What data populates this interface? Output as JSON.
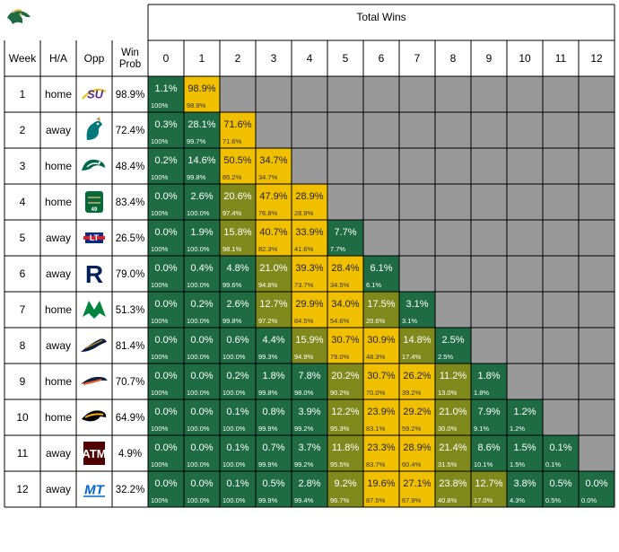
{
  "header": {
    "logo_icon": "dragon-mascot-logo",
    "total_wins_label": "Total Wins",
    "col_week": "Week",
    "col_ha": "H/A",
    "col_opp": "Opp",
    "col_winprob_line1": "Win",
    "col_winprob_line2": "Prob",
    "win_columns": [
      "0",
      "1",
      "2",
      "3",
      "4",
      "5",
      "6",
      "7",
      "8",
      "9",
      "10",
      "11",
      "12"
    ]
  },
  "colors": {
    "dark_green": "#1e6b44",
    "olive": "#808a1c",
    "yellow": "#f0c000",
    "na_gray": "#999999"
  },
  "chart_data": {
    "type": "table",
    "title": "Total Wins",
    "games": [
      {
        "week": "1",
        "ha": "home",
        "opp_icon": "lsu-logo",
        "win_prob": "98.9%"
      },
      {
        "week": "2",
        "ha": "away",
        "opp_icon": "coastal-carolina-chanticleer-logo",
        "win_prob": "72.4%"
      },
      {
        "week": "3",
        "ha": "home",
        "opp_icon": "tulane-green-wave-logo",
        "win_prob": "48.4%"
      },
      {
        "week": "4",
        "ha": "home",
        "opp_icon": "charlotte-49ers-logo",
        "win_prob": "83.4%"
      },
      {
        "week": "5",
        "ha": "away",
        "opp_icon": "louisiana-tech-logo",
        "win_prob": "26.5%"
      },
      {
        "week": "6",
        "ha": "away",
        "opp_icon": "rice-owls-r-logo",
        "win_prob": "79.0%"
      },
      {
        "week": "7",
        "ha": "home",
        "opp_icon": "north-texas-eagle-logo",
        "win_prob": "51.3%"
      },
      {
        "week": "8",
        "ha": "away",
        "opp_icon": "fiu-panther-logo",
        "win_prob": "81.4%"
      },
      {
        "week": "9",
        "ha": "home",
        "opp_icon": "utsa-roadrunner-logo",
        "win_prob": "70.7%"
      },
      {
        "week": "10",
        "ha": "home",
        "opp_icon": "southern-miss-eagle-logo",
        "win_prob": "64.9%"
      },
      {
        "week": "11",
        "ha": "away",
        "opp_icon": "texas-am-logo",
        "win_prob": "4.9%"
      },
      {
        "week": "12",
        "ha": "away",
        "opp_icon": "middle-tennessee-logo",
        "win_prob": "32.2%"
      }
    ],
    "cells": [
      [
        [
          "1.1%",
          "100%",
          "g"
        ],
        [
          "98.9%",
          "98.9%",
          "y"
        ]
      ],
      [
        [
          "0.3%",
          "100%",
          "g"
        ],
        [
          "28.1%",
          "99.7%",
          "g"
        ],
        [
          "71.6%",
          "71.6%",
          "y"
        ]
      ],
      [
        [
          "0.2%",
          "100%",
          "g"
        ],
        [
          "14.6%",
          "99.8%",
          "g"
        ],
        [
          "50.5%",
          "85.2%",
          "y"
        ],
        [
          "34.7%",
          "34.7%",
          "y"
        ]
      ],
      [
        [
          "0.0%",
          "100%",
          "g"
        ],
        [
          "2.6%",
          "100.0%",
          "g"
        ],
        [
          "20.6%",
          "97.4%",
          "o"
        ],
        [
          "47.9%",
          "76.8%",
          "y"
        ],
        [
          "28.9%",
          "28.9%",
          "y"
        ]
      ],
      [
        [
          "0.0%",
          "100%",
          "g"
        ],
        [
          "1.9%",
          "100.0%",
          "g"
        ],
        [
          "15.8%",
          "98.1%",
          "o"
        ],
        [
          "40.7%",
          "82.3%",
          "y"
        ],
        [
          "33.9%",
          "41.6%",
          "y"
        ],
        [
          "7.7%",
          "7.7%",
          "g"
        ]
      ],
      [
        [
          "0.0%",
          "100%",
          "g"
        ],
        [
          "0.4%",
          "100.0%",
          "g"
        ],
        [
          "4.8%",
          "99.6%",
          "g"
        ],
        [
          "21.0%",
          "94.8%",
          "o"
        ],
        [
          "39.3%",
          "73.7%",
          "y"
        ],
        [
          "28.4%",
          "34.5%",
          "y"
        ],
        [
          "6.1%",
          "6.1%",
          "g"
        ]
      ],
      [
        [
          "0.0%",
          "100%",
          "g"
        ],
        [
          "0.2%",
          "100.0%",
          "g"
        ],
        [
          "2.6%",
          "99.8%",
          "g"
        ],
        [
          "12.7%",
          "97.2%",
          "o"
        ],
        [
          "29.9%",
          "84.5%",
          "y"
        ],
        [
          "34.0%",
          "54.6%",
          "y"
        ],
        [
          "17.5%",
          "20.6%",
          "o"
        ],
        [
          "3.1%",
          "3.1%",
          "g"
        ]
      ],
      [
        [
          "0.0%",
          "100%",
          "g"
        ],
        [
          "0.0%",
          "100.0%",
          "g"
        ],
        [
          "0.6%",
          "100.0%",
          "g"
        ],
        [
          "4.4%",
          "99.3%",
          "g"
        ],
        [
          "15.9%",
          "94.9%",
          "o"
        ],
        [
          "30.7%",
          "79.0%",
          "y"
        ],
        [
          "30.9%",
          "48.3%",
          "y"
        ],
        [
          "14.8%",
          "17.4%",
          "o"
        ],
        [
          "2.5%",
          "2.5%",
          "g"
        ]
      ],
      [
        [
          "0.0%",
          "100%",
          "g"
        ],
        [
          "0.0%",
          "100.0%",
          "g"
        ],
        [
          "0.2%",
          "100.0%",
          "g"
        ],
        [
          "1.8%",
          "99.8%",
          "g"
        ],
        [
          "7.8%",
          "98.0%",
          "g"
        ],
        [
          "20.2%",
          "90.2%",
          "o"
        ],
        [
          "30.7%",
          "70.0%",
          "y"
        ],
        [
          "26.2%",
          "39.2%",
          "y"
        ],
        [
          "11.2%",
          "13.0%",
          "o"
        ],
        [
          "1.8%",
          "1.8%",
          "g"
        ]
      ],
      [
        [
          "0.0%",
          "100%",
          "g"
        ],
        [
          "0.0%",
          "100.0%",
          "g"
        ],
        [
          "0.1%",
          "100.0%",
          "g"
        ],
        [
          "0.8%",
          "99.9%",
          "g"
        ],
        [
          "3.9%",
          "99.2%",
          "g"
        ],
        [
          "12.2%",
          "95.3%",
          "o"
        ],
        [
          "23.9%",
          "83.1%",
          "y"
        ],
        [
          "29.2%",
          "59.2%",
          "y"
        ],
        [
          "21.0%",
          "30.0%",
          "o"
        ],
        [
          "7.9%",
          "9.1%",
          "g"
        ],
        [
          "1.2%",
          "1.2%",
          "g"
        ]
      ],
      [
        [
          "0.0%",
          "100%",
          "g"
        ],
        [
          "0.0%",
          "100.0%",
          "g"
        ],
        [
          "0.1%",
          "100.0%",
          "g"
        ],
        [
          "0.7%",
          "99.9%",
          "g"
        ],
        [
          "3.7%",
          "99.2%",
          "g"
        ],
        [
          "11.8%",
          "95.5%",
          "o"
        ],
        [
          "23.3%",
          "83.7%",
          "y"
        ],
        [
          "28.9%",
          "60.4%",
          "y"
        ],
        [
          "21.4%",
          "31.5%",
          "o"
        ],
        [
          "8.6%",
          "10.1%",
          "g"
        ],
        [
          "1.5%",
          "1.5%",
          "g"
        ],
        [
          "0.1%",
          "0.1%",
          "g"
        ]
      ],
      [
        [
          "0.0%",
          "100%",
          "g"
        ],
        [
          "0.0%",
          "100.0%",
          "g"
        ],
        [
          "0.1%",
          "100.0%",
          "g"
        ],
        [
          "0.5%",
          "99.9%",
          "g"
        ],
        [
          "2.8%",
          "99.4%",
          "g"
        ],
        [
          "9.2%",
          "96.7%",
          "o"
        ],
        [
          "19.6%",
          "87.5%",
          "y"
        ],
        [
          "27.1%",
          "67.9%",
          "y"
        ],
        [
          "23.8%",
          "40.8%",
          "o"
        ],
        [
          "12.7%",
          "17.0%",
          "o"
        ],
        [
          "3.8%",
          "4.3%",
          "g"
        ],
        [
          "0.5%",
          "0.5%",
          "g"
        ],
        [
          "0.0%",
          "0.0%",
          "g"
        ]
      ]
    ]
  }
}
